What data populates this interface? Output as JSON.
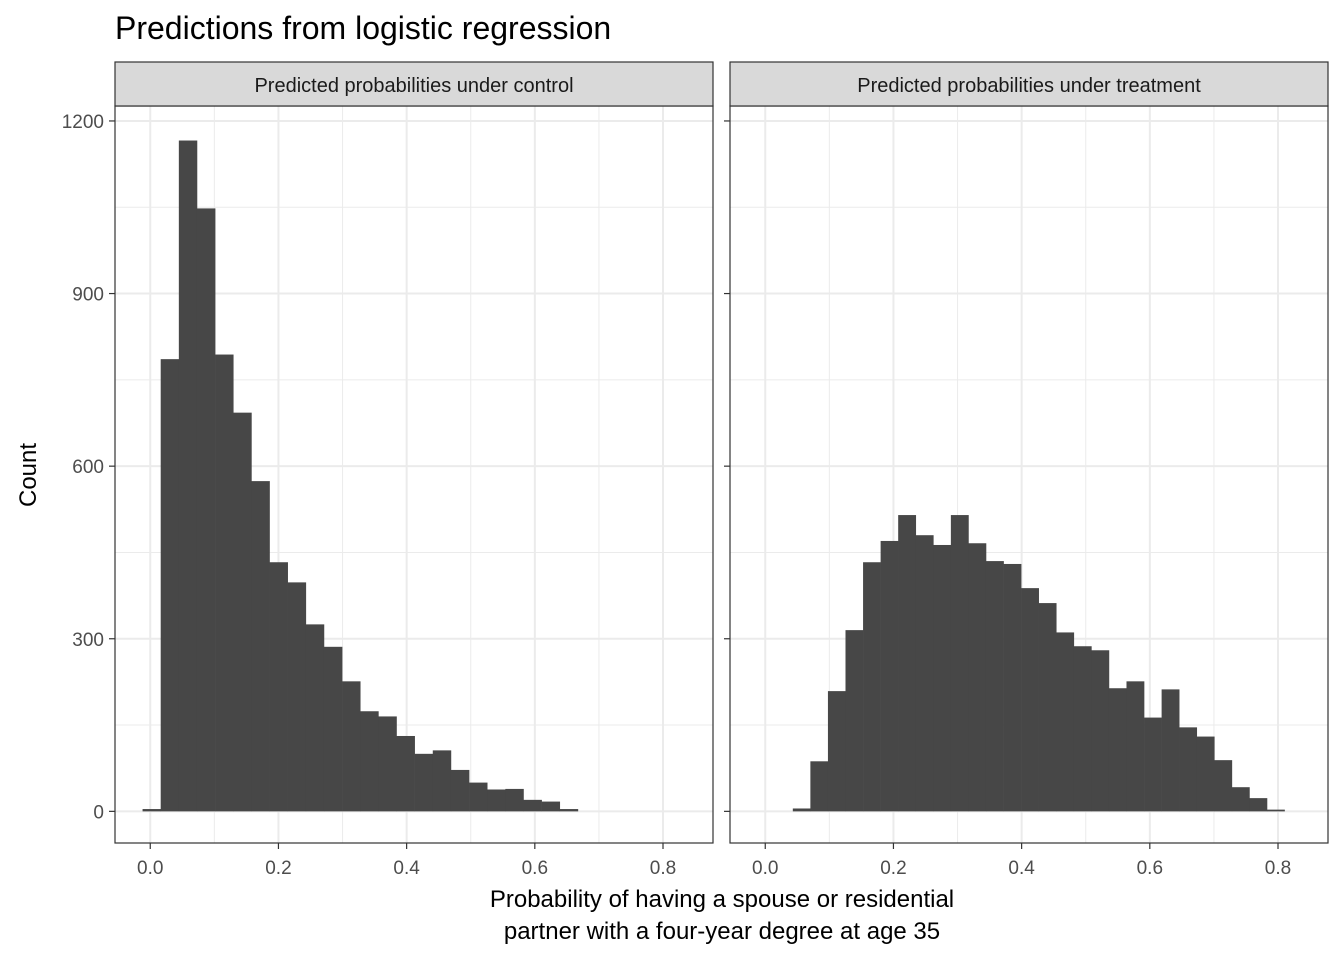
{
  "chart_data": {
    "type": "bar",
    "title": "Predictions from logistic regression",
    "xlabel": [
      "Probability of having a spouse or residential",
      "partner with a four-year degree at age 35"
    ],
    "ylabel": "Count",
    "ylim": [
      -55,
      1226
    ],
    "xlim": [
      -0.055,
      0.878
    ],
    "yticks": [
      0,
      300,
      600,
      900,
      1200
    ],
    "ytick_labels": [
      "0",
      "300",
      "600",
      "900",
      "1200"
    ],
    "xticks": [
      0.0,
      0.2,
      0.4,
      0.6,
      0.8
    ],
    "xtick_labels": [
      "0.0",
      "0.2",
      "0.4",
      "0.6",
      "0.8"
    ],
    "grid": true,
    "panels": [
      {
        "strip": "Predicted probabilities under control",
        "bin_start": -0.012,
        "bin_width": 0.0283,
        "values": [
          4,
          786,
          1166,
          1048,
          794,
          693,
          574,
          433,
          398,
          325,
          286,
          226,
          174,
          165,
          131,
          100,
          106,
          72,
          50,
          38,
          39,
          20,
          17,
          4
        ]
      },
      {
        "strip": "Predicted probabilities under treatment",
        "bin_start": 0.043,
        "bin_width": 0.0274,
        "values": [
          5,
          87,
          209,
          315,
          433,
          470,
          515,
          480,
          463,
          515,
          466,
          435,
          430,
          388,
          362,
          311,
          287,
          280,
          214,
          226,
          163,
          212,
          146,
          130,
          89,
          42,
          23,
          3
        ]
      }
    ],
    "colors": {
      "bar": "#474747",
      "strip": "#d9d9d9",
      "grid": "#ebebeb",
      "border": "#333333"
    }
  }
}
